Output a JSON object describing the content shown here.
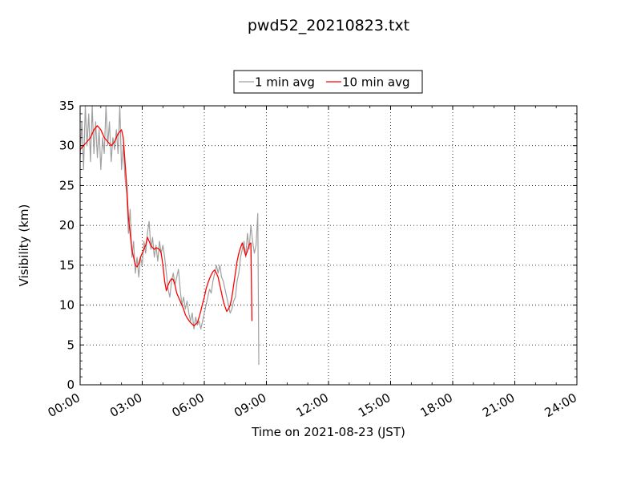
{
  "chart_data": {
    "type": "line",
    "title": "pwd52_20210823.txt",
    "xlabel": "Time on 2021-08-23 (JST)",
    "ylabel": "Visibility (km)",
    "xlim": [
      "00:00",
      "24:00"
    ],
    "ylim": [
      0,
      35
    ],
    "x_ticks": [
      "00:00",
      "03:00",
      "06:00",
      "09:00",
      "12:00",
      "15:00",
      "18:00",
      "21:00",
      "24:00"
    ],
    "y_ticks": [
      "0",
      "5",
      "10",
      "15",
      "20",
      "25",
      "30",
      "35"
    ],
    "grid": true,
    "legend_position": "top-center",
    "series": [
      {
        "name": "1 min avg",
        "color": "#a0a0a0",
        "points": [
          [
            "00:00",
            28.5
          ],
          [
            "00:05",
            33
          ],
          [
            "00:10",
            27
          ],
          [
            "00:15",
            35
          ],
          [
            "00:20",
            30
          ],
          [
            "00:25",
            34
          ],
          [
            "00:30",
            28
          ],
          [
            "00:35",
            35
          ],
          [
            "00:40",
            29
          ],
          [
            "00:45",
            33
          ],
          [
            "00:50",
            28.5
          ],
          [
            "00:55",
            32
          ],
          [
            "01:00",
            27
          ],
          [
            "01:05",
            31
          ],
          [
            "01:10",
            29
          ],
          [
            "01:15",
            35
          ],
          [
            "01:20",
            30
          ],
          [
            "01:25",
            33
          ],
          [
            "01:30",
            28
          ],
          [
            "01:35",
            31
          ],
          [
            "01:40",
            29.5
          ],
          [
            "01:45",
            32
          ],
          [
            "01:50",
            29
          ],
          [
            "01:55",
            35
          ],
          [
            "02:00",
            27
          ],
          [
            "02:05",
            30
          ],
          [
            "02:10",
            26
          ],
          [
            "02:15",
            24
          ],
          [
            "02:20",
            19
          ],
          [
            "02:25",
            22
          ],
          [
            "02:30",
            16
          ],
          [
            "02:35",
            18
          ],
          [
            "02:40",
            14
          ],
          [
            "02:45",
            16
          ],
          [
            "02:50",
            13.5
          ],
          [
            "02:55",
            16
          ],
          [
            "03:00",
            15
          ],
          [
            "03:05",
            18
          ],
          [
            "03:10",
            16.5
          ],
          [
            "03:15",
            19
          ],
          [
            "03:20",
            20.5
          ],
          [
            "03:25",
            17
          ],
          [
            "03:30",
            18.5
          ],
          [
            "03:35",
            16
          ],
          [
            "03:40",
            17.5
          ],
          [
            "03:45",
            15.5
          ],
          [
            "03:50",
            18
          ],
          [
            "03:55",
            16.5
          ],
          [
            "04:00",
            17.5
          ],
          [
            "04:05",
            16
          ],
          [
            "04:10",
            14
          ],
          [
            "04:15",
            12
          ],
          [
            "04:20",
            11
          ],
          [
            "04:25",
            13
          ],
          [
            "04:30",
            14
          ],
          [
            "04:35",
            12.5
          ],
          [
            "04:40",
            13.5
          ],
          [
            "04:45",
            14.5
          ],
          [
            "04:50",
            12
          ],
          [
            "04:55",
            10
          ],
          [
            "05:00",
            11
          ],
          [
            "05:05",
            9.5
          ],
          [
            "05:10",
            10.5
          ],
          [
            "05:15",
            9
          ],
          [
            "05:20",
            8
          ],
          [
            "05:25",
            9
          ],
          [
            "05:30",
            7
          ],
          [
            "05:35",
            8.5
          ],
          [
            "05:40",
            7.5
          ],
          [
            "05:45",
            8
          ],
          [
            "05:50",
            7
          ],
          [
            "05:55",
            8
          ],
          [
            "06:00",
            9
          ],
          [
            "06:05",
            10
          ],
          [
            "06:10",
            11
          ],
          [
            "06:15",
            12
          ],
          [
            "06:20",
            11.5
          ],
          [
            "06:25",
            13
          ],
          [
            "06:30",
            14
          ],
          [
            "06:35",
            15
          ],
          [
            "06:40",
            14
          ],
          [
            "06:45",
            15
          ],
          [
            "06:50",
            13.5
          ],
          [
            "06:55",
            13
          ],
          [
            "07:00",
            12
          ],
          [
            "07:05",
            11
          ],
          [
            "07:10",
            10
          ],
          [
            "07:15",
            9
          ],
          [
            "07:20",
            9.5
          ],
          [
            "07:25",
            10.5
          ],
          [
            "07:30",
            11
          ],
          [
            "07:35",
            13
          ],
          [
            "07:40",
            14
          ],
          [
            "07:45",
            16
          ],
          [
            "07:50",
            17
          ],
          [
            "07:55",
            18
          ],
          [
            "08:00",
            16
          ],
          [
            "08:05",
            19
          ],
          [
            "08:10",
            17
          ],
          [
            "08:15",
            20
          ],
          [
            "08:20",
            18
          ],
          [
            "08:25",
            16.5
          ],
          [
            "08:30",
            17.5
          ],
          [
            "08:35",
            21.5
          ],
          [
            "08:38",
            2.5
          ]
        ]
      },
      {
        "name": "10 min avg",
        "color": "#ff0000",
        "points": [
          [
            "00:00",
            29.5
          ],
          [
            "00:10",
            30
          ],
          [
            "00:20",
            30.5
          ],
          [
            "00:30",
            31
          ],
          [
            "00:40",
            32
          ],
          [
            "00:50",
            32.5
          ],
          [
            "01:00",
            32
          ],
          [
            "01:10",
            31
          ],
          [
            "01:20",
            30.5
          ],
          [
            "01:30",
            30
          ],
          [
            "01:40",
            30.5
          ],
          [
            "01:50",
            31.5
          ],
          [
            "02:00",
            32
          ],
          [
            "02:05",
            31
          ],
          [
            "02:10",
            28
          ],
          [
            "02:15",
            25
          ],
          [
            "02:20",
            21
          ],
          [
            "02:25",
            19
          ],
          [
            "02:30",
            17
          ],
          [
            "02:35",
            16
          ],
          [
            "02:40",
            15
          ],
          [
            "02:45",
            14.8
          ],
          [
            "02:50",
            15.2
          ],
          [
            "02:55",
            16
          ],
          [
            "03:00",
            16.5
          ],
          [
            "03:05",
            17
          ],
          [
            "03:10",
            17.5
          ],
          [
            "03:15",
            18.5
          ],
          [
            "03:20",
            18
          ],
          [
            "03:25",
            17.5
          ],
          [
            "03:30",
            17.2
          ],
          [
            "03:35",
            17
          ],
          [
            "03:40",
            17.2
          ],
          [
            "03:45",
            17.1
          ],
          [
            "03:50",
            17
          ],
          [
            "03:55",
            16.5
          ],
          [
            "04:00",
            15
          ],
          [
            "04:05",
            13
          ],
          [
            "04:10",
            11.8
          ],
          [
            "04:15",
            12.5
          ],
          [
            "04:20",
            13
          ],
          [
            "04:25",
            13.3
          ],
          [
            "04:30",
            13.2
          ],
          [
            "04:35",
            12.5
          ],
          [
            "04:40",
            11.5
          ],
          [
            "04:45",
            11
          ],
          [
            "04:50",
            10.5
          ],
          [
            "04:55",
            10
          ],
          [
            "05:00",
            9.5
          ],
          [
            "05:05",
            8.8
          ],
          [
            "05:10",
            8.4
          ],
          [
            "05:15",
            8.1
          ],
          [
            "05:20",
            7.8
          ],
          [
            "05:25",
            7.6
          ],
          [
            "05:30",
            7.4
          ],
          [
            "05:35",
            7.6
          ],
          [
            "05:40",
            7.8
          ],
          [
            "05:45",
            8.5
          ],
          [
            "05:50",
            9.3
          ],
          [
            "05:55",
            10.2
          ],
          [
            "06:00",
            11
          ],
          [
            "06:05",
            12
          ],
          [
            "06:10",
            12.7
          ],
          [
            "06:15",
            13.3
          ],
          [
            "06:20",
            13.8
          ],
          [
            "06:25",
            14.2
          ],
          [
            "06:30",
            14.4
          ],
          [
            "06:35",
            14
          ],
          [
            "06:40",
            13.5
          ],
          [
            "06:45",
            12.5
          ],
          [
            "06:50",
            11.5
          ],
          [
            "06:55",
            10.5
          ],
          [
            "07:00",
            9.8
          ],
          [
            "07:05",
            9.2
          ],
          [
            "07:10",
            9.5
          ],
          [
            "07:15",
            10
          ],
          [
            "07:20",
            11
          ],
          [
            "07:25",
            12.5
          ],
          [
            "07:30",
            14
          ],
          [
            "07:35",
            15.5
          ],
          [
            "07:40",
            16.5
          ],
          [
            "07:45",
            17.2
          ],
          [
            "07:50",
            17.8
          ],
          [
            "07:55",
            17
          ],
          [
            "08:00",
            16.2
          ],
          [
            "08:05",
            16.8
          ],
          [
            "08:10",
            17.6
          ],
          [
            "08:15",
            17.8
          ],
          [
            "08:18",
            8
          ]
        ]
      }
    ]
  }
}
